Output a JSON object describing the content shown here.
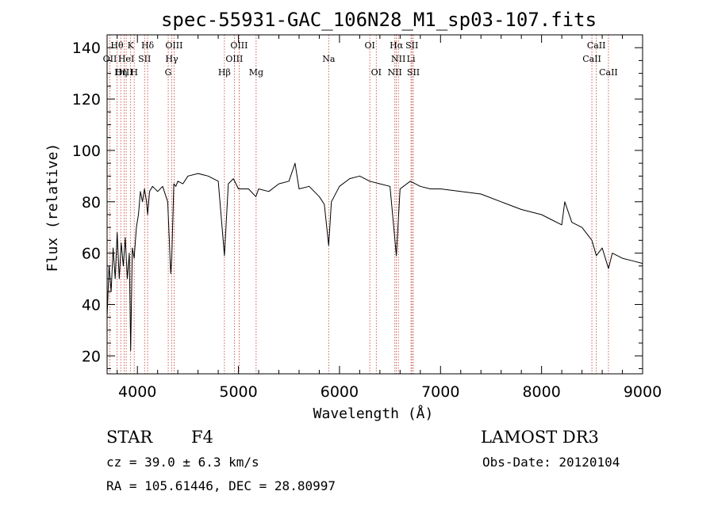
{
  "chart_data": {
    "type": "line",
    "title": "spec-55931-GAC_106N28_M1_sp03-107.fits",
    "xlabel": "Wavelength (Å)",
    "ylabel": "Flux (relative)",
    "xlim": [
      3700,
      9000
    ],
    "ylim": [
      13,
      145
    ],
    "xticks": [
      4000,
      5000,
      6000,
      7000,
      8000,
      9000
    ],
    "yticks": [
      20,
      40,
      60,
      80,
      100,
      120,
      140
    ],
    "series": [
      {
        "name": "spectrum",
        "x": [
          3700,
          3720,
          3740,
          3760,
          3780,
          3800,
          3820,
          3840,
          3860,
          3880,
          3900,
          3920,
          3933,
          3950,
          3968,
          3990,
          4010,
          4030,
          4050,
          4070,
          4090,
          4101,
          4120,
          4150,
          4200,
          4250,
          4300,
          4330,
          4340,
          4360,
          4380,
          4400,
          4450,
          4500,
          4600,
          4700,
          4800,
          4861,
          4900,
          4950,
          5000,
          5100,
          5172,
          5200,
          5300,
          5400,
          5500,
          5560,
          5600,
          5700,
          5800,
          5850,
          5893,
          5920,
          6000,
          6100,
          6200,
          6300,
          6400,
          6500,
          6563,
          6600,
          6700,
          6800,
          6900,
          7000,
          7200,
          7400,
          7600,
          7800,
          8000,
          8100,
          8200,
          8230,
          8300,
          8400,
          8498,
          8542,
          8600,
          8662,
          8700,
          8800,
          8900,
          9000
        ],
        "y": [
          35,
          55,
          45,
          62,
          50,
          68,
          50,
          64,
          55,
          66,
          50,
          60,
          22,
          62,
          58,
          70,
          75,
          84,
          80,
          85,
          80,
          75,
          84,
          86,
          84,
          86,
          80,
          52,
          58,
          87,
          86,
          88,
          87,
          90,
          91,
          90,
          88,
          59,
          87,
          89,
          85,
          85,
          82,
          85,
          84,
          87,
          88,
          95,
          85,
          86,
          82,
          79,
          63,
          80,
          86,
          89,
          90,
          88,
          87,
          86,
          59,
          85,
          88,
          86,
          85,
          85,
          84,
          83,
          80,
          77,
          75,
          73,
          71,
          80,
          72,
          70,
          65,
          59,
          62,
          54,
          60,
          58,
          57,
          56
        ]
      }
    ],
    "lines": [
      {
        "label": "Hθ",
        "wave": 3798,
        "row": 0
      },
      {
        "label": "OII",
        "wave": 3727,
        "row": 1
      },
      {
        "label": "OIII",
        "wave": 3869,
        "row": 2
      },
      {
        "label": "Hη",
        "wave": 3835,
        "row": 2
      },
      {
        "label": "HeI",
        "wave": 3889,
        "row": 1
      },
      {
        "label": "K",
        "wave": 3933,
        "row": 0
      },
      {
        "label": "H",
        "wave": 3968,
        "row": 2
      },
      {
        "label": "SII",
        "wave": 4071,
        "row": 1
      },
      {
        "label": "Hδ",
        "wave": 4101,
        "row": 0
      },
      {
        "label": "OIII",
        "wave": 4363,
        "row": 0
      },
      {
        "label": "Hγ",
        "wave": 4340,
        "row": 1
      },
      {
        "label": "G",
        "wave": 4305,
        "row": 2
      },
      {
        "label": "Hβ",
        "wave": 4861,
        "row": 2
      },
      {
        "label": "OIII",
        "wave": 5007,
        "row": 0
      },
      {
        "label": "OIII",
        "wave": 4959,
        "row": 1
      },
      {
        "label": "Mg",
        "wave": 5175,
        "row": 2
      },
      {
        "label": "Na",
        "wave": 5893,
        "row": 1
      },
      {
        "label": "OI",
        "wave": 6300,
        "row": 0
      },
      {
        "label": "OI",
        "wave": 6364,
        "row": 2
      },
      {
        "label": "Hα",
        "wave": 6563,
        "row": 0
      },
      {
        "label": "NII",
        "wave": 6583,
        "row": 1
      },
      {
        "label": "NII",
        "wave": 6548,
        "row": 2
      },
      {
        "label": "SII",
        "wave": 6717,
        "row": 0
      },
      {
        "label": "Li",
        "wave": 6708,
        "row": 1
      },
      {
        "label": "SII",
        "wave": 6731,
        "row": 2
      },
      {
        "label": "CaII",
        "wave": 8542,
        "row": 0
      },
      {
        "label": "CaII",
        "wave": 8498,
        "row": 1
      },
      {
        "label": "CaII",
        "wave": 8662,
        "row": 2
      }
    ]
  },
  "info": {
    "class_label": "STAR",
    "subclass": "F4",
    "survey": "LAMOST DR3",
    "cz": "cz = 39.0 ± 6.3 km/s",
    "obs_date": "Obs-Date: 20120104",
    "coords": "RA = 105.61446, DEC =  28.80997"
  },
  "colors": {
    "axis": "#000000",
    "spectrum": "#000000",
    "line_marker": "#c0392b"
  }
}
